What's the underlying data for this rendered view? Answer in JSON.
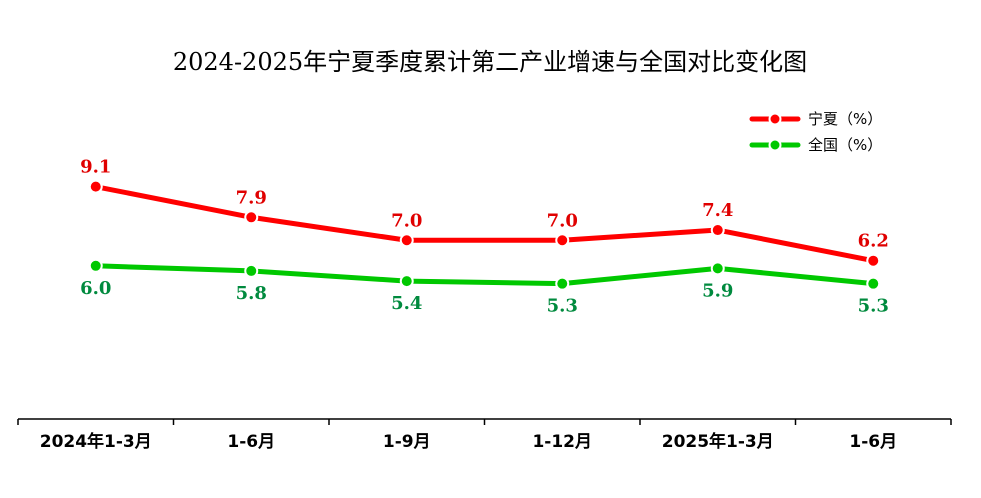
{
  "chart_data": {
    "type": "line",
    "title": "2024-2025年宁夏季度累计第二产业增速与全国对比变化图",
    "categories": [
      "2024年1-3月",
      "1-6月",
      "1-9月",
      "1-12月",
      "2025年1-3月",
      "1-6月"
    ],
    "series": [
      {
        "name": "宁夏（%）",
        "color": "#ff0000",
        "label_color": "#e00000",
        "values": [
          9.1,
          7.9,
          7.0,
          7.0,
          7.4,
          6.2
        ]
      },
      {
        "name": "全国（%）",
        "color": "#00c800",
        "label_color": "#008a3e",
        "values": [
          6.0,
          5.8,
          5.4,
          5.3,
          5.9,
          5.3
        ]
      }
    ],
    "ylim": [
      0,
      15
    ],
    "grid": false,
    "legend_position": "top-right"
  }
}
